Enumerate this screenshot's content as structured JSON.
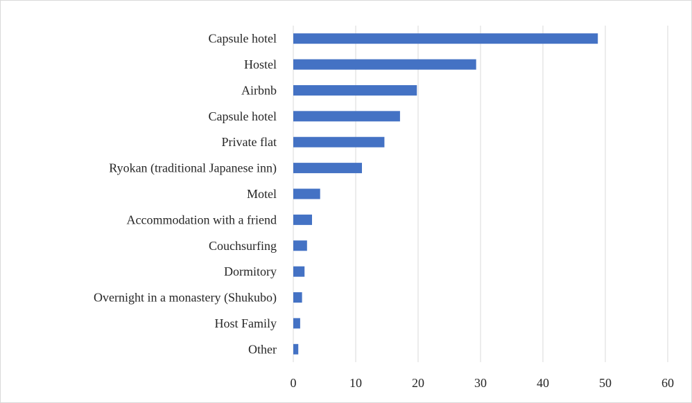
{
  "chart_data": {
    "type": "bar",
    "orientation": "horizontal",
    "categories": [
      "Capsule hotel",
      "Hostel",
      "Airbnb",
      "Capsule hotel",
      "Private flat",
      "Ryokan (traditional Japanese inn)",
      "Motel",
      "Accommodation with a friend",
      "Couchsurfing",
      "Dormitory",
      "Overnight in a monastery (Shukubo)",
      "Host Family",
      "Other"
    ],
    "values": [
      48.8,
      29.3,
      19.8,
      17.1,
      14.6,
      11.0,
      4.3,
      3.0,
      2.2,
      1.8,
      1.4,
      1.1,
      0.8
    ],
    "xlim": [
      0,
      60
    ],
    "xticks": [
      "0",
      "10",
      "20",
      "30",
      "40",
      "50",
      "60"
    ],
    "grid": true,
    "legend": "none",
    "bar_color": "#4472c4",
    "grid_color": "#d9d9d9"
  }
}
